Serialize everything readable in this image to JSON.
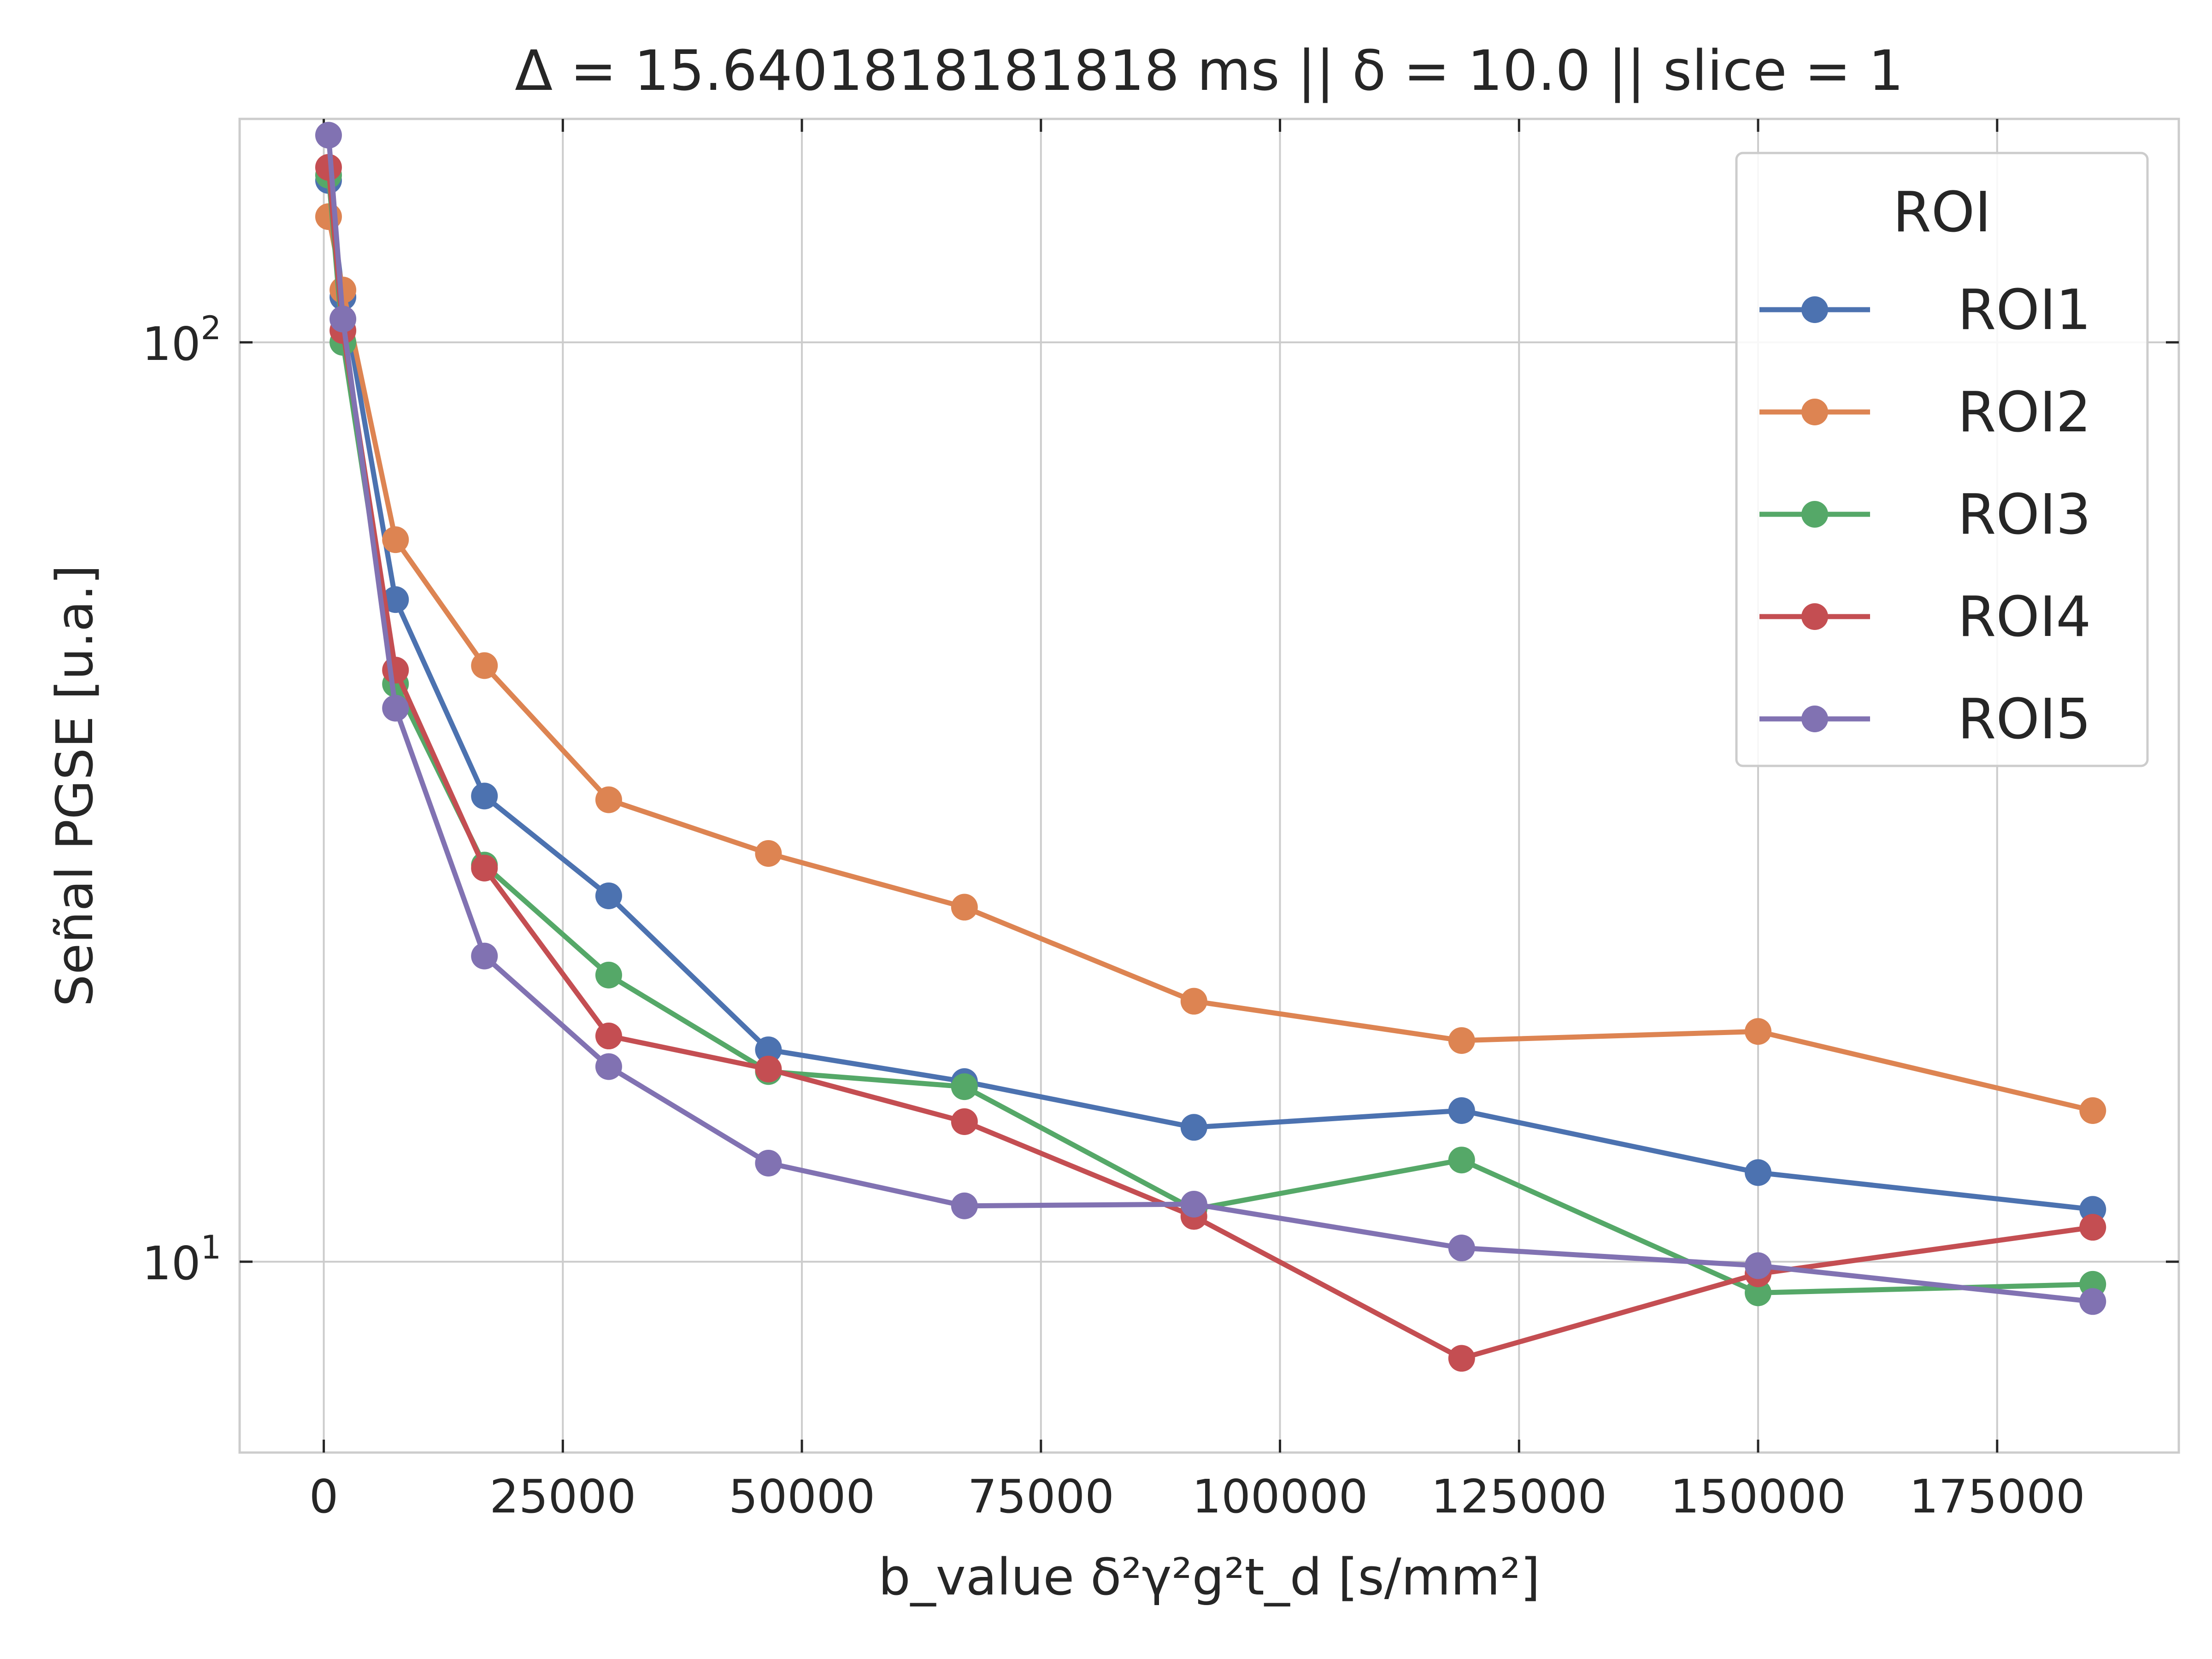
{
  "chart_data": {
    "type": "line",
    "title": "Δ = 15.6401818181818 ms  ||  δ = 10.0 || slice = 1",
    "xlabel": "b_value δ²γ²g²t_d [s/mm²]",
    "ylabel": "Señal PGSE [u.a.]",
    "xlim": [
      -8800,
      194000
    ],
    "ylim": [
      6.2,
      175
    ],
    "yscale": "log",
    "grid": true,
    "x_ticks": [
      0,
      25000,
      50000,
      75000,
      100000,
      125000,
      150000,
      175000
    ],
    "x_tick_labels": [
      "0",
      "25000",
      "50000",
      "75000",
      "100000",
      "125000",
      "150000",
      "175000"
    ],
    "y_ticks": [
      10,
      100
    ],
    "y_tick_labels": [
      {
        "base": "10",
        "exp": "1"
      },
      {
        "base": "10",
        "exp": "2"
      }
    ],
    "legend": {
      "title": "ROI",
      "position": "top-right"
    },
    "x": [
      500,
      2000,
      7500,
      16800,
      29800,
      46500,
      67000,
      91000,
      119000,
      150000,
      185000
    ],
    "series": [
      {
        "name": "ROI1",
        "color": "#4c72b0",
        "values": [
          150,
          112,
          52.5,
          32.1,
          25.0,
          17.0,
          15.7,
          14.0,
          14.6,
          12.5,
          11.4
        ]
      },
      {
        "name": "ROI2",
        "color": "#dd8452",
        "values": [
          137,
          114,
          61.0,
          44.5,
          31.8,
          27.8,
          24.3,
          19.2,
          17.4,
          17.8,
          14.6
        ]
      },
      {
        "name": "ROI3",
        "color": "#55a868",
        "values": [
          152,
          100,
          42.5,
          27.0,
          20.5,
          16.1,
          15.5,
          11.4,
          12.9,
          9.25,
          9.45
        ]
      },
      {
        "name": "ROI4",
        "color": "#c44e52",
        "values": [
          155,
          103,
          44.0,
          26.8,
          17.6,
          16.2,
          14.2,
          11.2,
          7.85,
          9.7,
          10.9
        ]
      },
      {
        "name": "ROI5",
        "color": "#8172b2",
        "values": [
          168,
          106,
          40.0,
          21.5,
          16.3,
          12.8,
          11.5,
          11.55,
          10.35,
          9.9,
          9.05
        ]
      }
    ]
  }
}
